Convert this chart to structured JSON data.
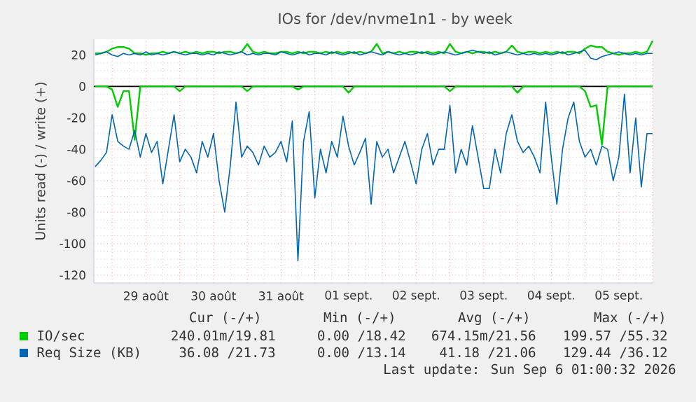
{
  "chart_data": {
    "type": "line",
    "title": "IOs for /dev/nvme1n1 - by week",
    "ylabel": "Units read (-) / write (+)",
    "x": [
      "2026-08-28T18:00",
      "2026-08-28T20:00",
      "2026-08-28T22:00",
      "2026-08-29T00:00",
      "2026-08-29T02:00",
      "2026-08-29T04:00",
      "2026-08-29T06:00",
      "2026-08-29T08:00",
      "2026-08-29T10:00",
      "2026-08-29T12:00",
      "2026-08-29T14:00",
      "2026-08-29T16:00",
      "2026-08-29T18:00",
      "2026-08-29T20:00",
      "2026-08-29T22:00",
      "2026-08-30T00:00",
      "2026-08-30T02:00",
      "2026-08-30T04:00",
      "2026-08-30T06:00",
      "2026-08-30T08:00",
      "2026-08-30T10:00",
      "2026-08-30T12:00",
      "2026-08-30T14:00",
      "2026-08-30T16:00",
      "2026-08-30T18:00",
      "2026-08-30T20:00",
      "2026-08-30T22:00",
      "2026-08-31T00:00",
      "2026-08-31T02:00",
      "2026-08-31T04:00",
      "2026-08-31T06:00",
      "2026-08-31T08:00",
      "2026-08-31T10:00",
      "2026-08-31T12:00",
      "2026-08-31T14:00",
      "2026-08-31T16:00",
      "2026-08-31T18:00",
      "2026-08-31T20:00",
      "2026-08-31T22:00",
      "2026-09-01T00:00",
      "2026-09-01T02:00",
      "2026-09-01T04:00",
      "2026-09-01T06:00",
      "2026-09-01T08:00",
      "2026-09-01T10:00",
      "2026-09-01T12:00",
      "2026-09-01T14:00",
      "2026-09-01T16:00",
      "2026-09-01T18:00",
      "2026-09-01T20:00",
      "2026-09-01T22:00",
      "2026-09-02T00:00",
      "2026-09-02T02:00",
      "2026-09-02T04:00",
      "2026-09-02T06:00",
      "2026-09-02T08:00",
      "2026-09-02T10:00",
      "2026-09-02T12:00",
      "2026-09-02T14:00",
      "2026-09-02T16:00",
      "2026-09-02T18:00",
      "2026-09-02T20:00",
      "2026-09-02T22:00",
      "2026-09-03T00:00",
      "2026-09-03T02:00",
      "2026-09-03T04:00",
      "2026-09-03T06:00",
      "2026-09-03T08:00",
      "2026-09-03T10:00",
      "2026-09-03T12:00",
      "2026-09-03T14:00",
      "2026-09-03T16:00",
      "2026-09-03T18:00",
      "2026-09-03T20:00",
      "2026-09-03T22:00",
      "2026-09-04T00:00",
      "2026-09-04T02:00",
      "2026-09-04T04:00",
      "2026-09-04T06:00",
      "2026-09-04T08:00",
      "2026-09-04T10:00",
      "2026-09-04T12:00",
      "2026-09-04T14:00",
      "2026-09-04T16:00",
      "2026-09-04T18:00",
      "2026-09-04T20:00",
      "2026-09-04T22:00",
      "2026-09-05T00:00",
      "2026-09-05T02:00",
      "2026-09-05T04:00",
      "2026-09-05T06:00",
      "2026-09-05T08:00",
      "2026-09-05T10:00",
      "2026-09-05T12:00",
      "2026-09-05T14:00",
      "2026-09-05T16:00",
      "2026-09-05T18:00",
      "2026-09-05T20:00",
      "2026-09-05T22:00",
      "2026-09-06T00:00"
    ],
    "series": [
      {
        "name": "IO/sec",
        "color": "#00cc00",
        "values": [
          21,
          21,
          22,
          24,
          25,
          25,
          24,
          21,
          21,
          20,
          21,
          21,
          22,
          21,
          22,
          21,
          22,
          21,
          22,
          21,
          22,
          22,
          21,
          22,
          22,
          21,
          22,
          27,
          22,
          21,
          22,
          21,
          21,
          22,
          22,
          21,
          22,
          21,
          22,
          22,
          21,
          22,
          21,
          22,
          21,
          22,
          21,
          22,
          21,
          22,
          27,
          21,
          22,
          21,
          22,
          21,
          22,
          22,
          21,
          22,
          21,
          22,
          21,
          27,
          22,
          21,
          22,
          21,
          22,
          22,
          21,
          22,
          21,
          22,
          26,
          22,
          21,
          22,
          22,
          21,
          22,
          21,
          22,
          21,
          22,
          22,
          21,
          24,
          26,
          25,
          25,
          22,
          21,
          20,
          21,
          21,
          22,
          21,
          22,
          29
        ]
      },
      {
        "color": "#00cc00",
        "values": [
          0,
          0,
          0,
          -2,
          -13,
          -3,
          -3,
          -34,
          0,
          0,
          0,
          0,
          0,
          0,
          0,
          -3,
          0,
          0,
          0,
          0,
          0,
          0,
          0,
          0,
          0,
          0,
          0,
          -3,
          0,
          0,
          0,
          0,
          0,
          0,
          0,
          0,
          -2,
          0,
          0,
          0,
          0,
          0,
          0,
          0,
          0,
          -4,
          0,
          0,
          0,
          0,
          0,
          0,
          0,
          0,
          0,
          0,
          0,
          0,
          0,
          0,
          0,
          0,
          0,
          -3,
          0,
          0,
          0,
          0,
          0,
          0,
          0,
          0,
          0,
          0,
          0,
          -4,
          0,
          0,
          0,
          0,
          0,
          0,
          0,
          0,
          0,
          0,
          0,
          -3,
          -13,
          -12,
          -37,
          0,
          0,
          0,
          0,
          0,
          0,
          0,
          0,
          0
        ]
      },
      {
        "name": "Req Size (KB)",
        "color": "#0066b3",
        "values": [
          20,
          21,
          22,
          20,
          19,
          21,
          20,
          21,
          20,
          22,
          20,
          21,
          20,
          21,
          22,
          21,
          20,
          21,
          21,
          20,
          21,
          20,
          22,
          21,
          20,
          21,
          22,
          20,
          21,
          20,
          21,
          21,
          20,
          22,
          21,
          20,
          21,
          22,
          20,
          21,
          21,
          20,
          22,
          21,
          20,
          21,
          22,
          20,
          21,
          22,
          21,
          20,
          22,
          21,
          20,
          21,
          20,
          21,
          22,
          21,
          20,
          21,
          22,
          21,
          20,
          21,
          22,
          23,
          22,
          21,
          22,
          20,
          21,
          22,
          21,
          20,
          21,
          20,
          21,
          20,
          21,
          20,
          21,
          22,
          20,
          21,
          22,
          23,
          18,
          17,
          19,
          20,
          21,
          22,
          21,
          20,
          21,
          20,
          21,
          21
        ]
      },
      {
        "color": "#0066b3",
        "values": [
          -51,
          -47,
          -42,
          -18,
          -35,
          -38,
          -40,
          -28,
          -45,
          -30,
          -42,
          -35,
          -62,
          -40,
          -18,
          -48,
          -40,
          -45,
          -55,
          -35,
          -45,
          -30,
          -60,
          -80,
          -50,
          -10,
          -45,
          -38,
          -42,
          -50,
          -38,
          -45,
          -42,
          -35,
          -48,
          -22,
          -111,
          -35,
          -16,
          -71,
          -40,
          -55,
          -35,
          -45,
          -19,
          -38,
          -50,
          -42,
          -33,
          -75,
          -35,
          -45,
          -40,
          -55,
          -45,
          -35,
          -48,
          -62,
          -40,
          -30,
          -50,
          -40,
          -40,
          -12,
          -55,
          -40,
          -50,
          -25,
          -45,
          -65,
          -65,
          -40,
          -55,
          -30,
          -18,
          -35,
          -42,
          -38,
          -45,
          -55,
          -10,
          -45,
          -75,
          -40,
          -20,
          -10,
          -35,
          -45,
          -40,
          -50,
          -38,
          -40,
          -60,
          -45,
          -5,
          -55,
          -20,
          -64,
          -30,
          -30
        ]
      }
    ],
    "xlim": [
      "2026-08-28T17:30",
      "2026-09-06T00:00"
    ],
    "xticks": [
      {
        "value": "2026-08-29T00:00",
        "label": null
      },
      {
        "value": "2026-08-29T12:00",
        "label": "29 août"
      },
      {
        "value": "2026-08-30T00:00",
        "label": null
      },
      {
        "value": "2026-08-30T12:00",
        "label": "30 août"
      },
      {
        "value": "2026-08-31T00:00",
        "label": null
      },
      {
        "value": "2026-08-31T12:00",
        "label": "31 août"
      },
      {
        "value": "2026-09-01T00:00",
        "label": null
      },
      {
        "value": "2026-09-01T12:00",
        "label": "01 sept."
      },
      {
        "value": "2026-09-02T00:00",
        "label": null
      },
      {
        "value": "2026-09-02T12:00",
        "label": "02 sept."
      },
      {
        "value": "2026-09-03T00:00",
        "label": null
      },
      {
        "value": "2026-09-03T12:00",
        "label": "03 sept."
      },
      {
        "value": "2026-09-04T00:00",
        "label": null
      },
      {
        "value": "2026-09-04T12:00",
        "label": "04 sept."
      },
      {
        "value": "2026-09-05T00:00",
        "label": null
      },
      {
        "value": "2026-09-05T12:00",
        "label": "05 sept."
      },
      {
        "value": "2026-09-06T00:00",
        "label": null
      }
    ],
    "ylim": [
      -125,
      30
    ],
    "yticks": [
      -120,
      -100,
      -80,
      -60,
      -40,
      -20,
      0,
      20
    ],
    "ref_lines": [
      {
        "axis": "y",
        "value": 0,
        "color": "#000000"
      }
    ],
    "grid": true,
    "legend": "bottom",
    "marker": "none",
    "line_style": "solid",
    "annotations": [
      "Cur (-/+)",
      "Min (-/+)",
      "Avg (-/+)",
      "Max (-/+)",
      "240.01m/19.81",
      "0.00 /18.42",
      "674.15m/21.56",
      "199.57 /55.32",
      "36.08 /21.73",
      "0.00 /13.14",
      "41.18 /21.06",
      "129.44 /36.12",
      "Last update: Sun Sep  6 01:00:32 2026"
    ]
  }
}
